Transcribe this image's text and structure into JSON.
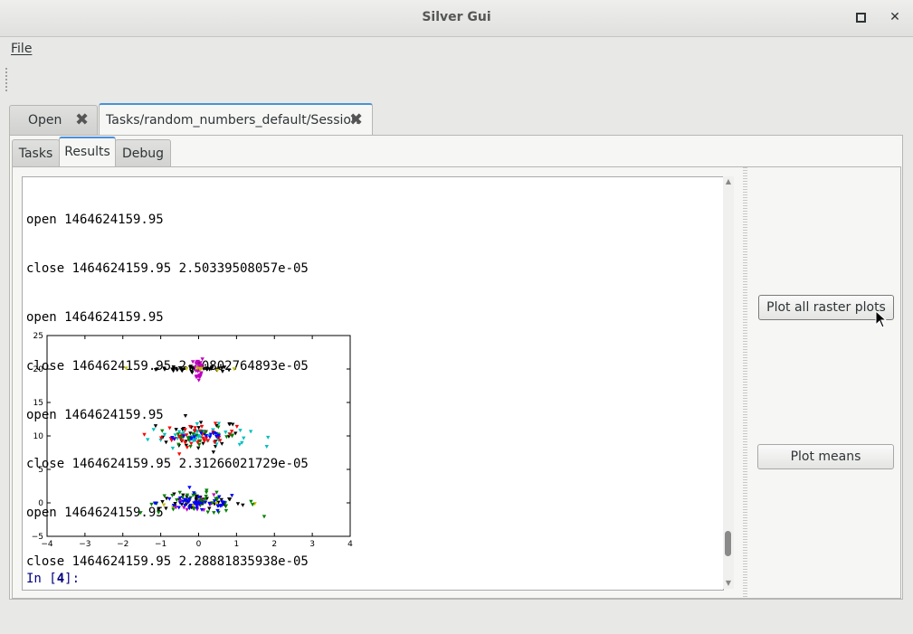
{
  "window": {
    "title": "Silver Gui"
  },
  "menu": {
    "file_label": "File"
  },
  "outer_tabs": [
    {
      "label": "Open"
    },
    {
      "label": "Tasks/random_numbers_default/Session"
    }
  ],
  "inner_tabs": [
    {
      "label": "Tasks"
    },
    {
      "label": "Results"
    },
    {
      "label": "Debug"
    }
  ],
  "console": {
    "lines": [
      "open 1464624159.95",
      "close 1464624159.95 2.50339508057e-05",
      "open 1464624159.95",
      "close 1464624159.95 2.40802764893e-05",
      "open 1464624159.95",
      "close 1464624159.95 2.31266021729e-05",
      "open 1464624159.95",
      "close 1464624159.95 2.28881835938e-05"
    ],
    "prompt_label": "In [",
    "prompt_number": "4",
    "prompt_tail": "]:"
  },
  "buttons": {
    "plot_raster_label": "Plot all raster plots",
    "plot_means_label": "Plot means"
  },
  "chart_data": {
    "type": "scatter",
    "title": "",
    "xlabel": "",
    "ylabel": "",
    "xlim": [
      -4,
      4
    ],
    "ylim": [
      -5,
      25
    ],
    "xticks": [
      "−4",
      "−3",
      "−2",
      "−1",
      "0",
      "1",
      "2",
      "3",
      "4"
    ],
    "yticks": [
      "−5",
      "0",
      "5",
      "10",
      "15",
      "20",
      "25"
    ],
    "marker": "triangle-down",
    "series": [
      {
        "color": "#000000",
        "clusters": [
          {
            "y": 20,
            "xspread": 1.0,
            "yspread": 0.2,
            "n": 40
          },
          {
            "y": 10,
            "xspread": 1.0,
            "yspread": 1.2,
            "n": 35
          },
          {
            "y": 0,
            "xspread": 1.0,
            "yspread": 0.6,
            "n": 45
          }
        ]
      },
      {
        "color": "#bf00bf",
        "clusters": [
          {
            "y": 20,
            "xspread": 0.12,
            "yspread": 1.0,
            "n": 35
          },
          {
            "y": 0,
            "xspread": 0.5,
            "yspread": 0.8,
            "n": 15
          }
        ]
      },
      {
        "color": "#bfbf00",
        "clusters": [
          {
            "y": 20,
            "xspread": 1.0,
            "yspread": 0.1,
            "n": 8
          },
          {
            "y": 0,
            "xspread": 1.2,
            "yspread": 0.3,
            "n": 8
          }
        ]
      },
      {
        "color": "#00bfbf",
        "clusters": [
          {
            "y": 10,
            "xspread": 1.2,
            "yspread": 0.8,
            "n": 45
          }
        ]
      },
      {
        "color": "#ff0000",
        "clusters": [
          {
            "y": 10,
            "xspread": 0.9,
            "yspread": 0.8,
            "n": 40
          }
        ]
      },
      {
        "color": "#008000",
        "clusters": [
          {
            "y": 10,
            "xspread": 1.0,
            "yspread": 0.6,
            "n": 20
          },
          {
            "y": 0,
            "xspread": 1.4,
            "yspread": 0.8,
            "n": 40
          }
        ]
      },
      {
        "color": "#0000ff",
        "clusters": [
          {
            "y": 10,
            "xspread": 0.8,
            "yspread": 0.4,
            "n": 15
          },
          {
            "y": 0,
            "xspread": 1.0,
            "yspread": 0.7,
            "n": 40
          }
        ]
      }
    ]
  }
}
